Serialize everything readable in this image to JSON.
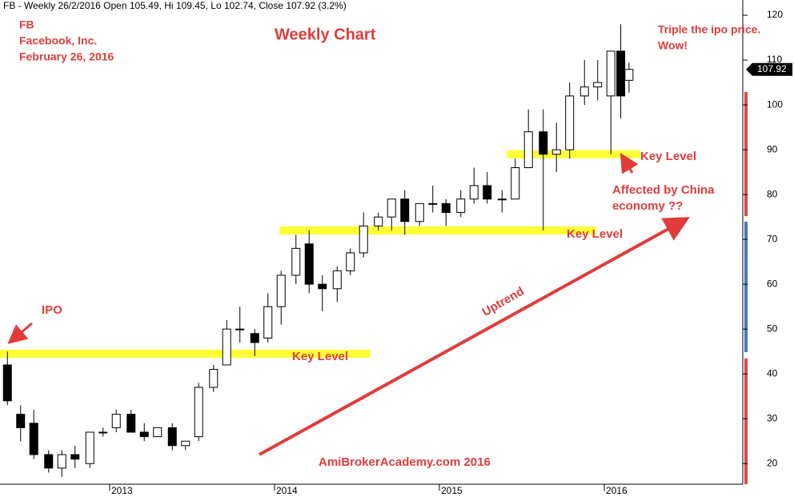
{
  "chart_data": {
    "type": "candlestick",
    "header": "FB - Weekly 26/2/2016 Open 105.49, Hi 109.45, Lo 102.74, Close 107.92 (3.2%)",
    "title": "Weekly Chart",
    "annotations": [
      "FB",
      "Facebook, Inc.",
      "February 26, 2016",
      "Triple the ipo price.",
      "Wow!",
      "IPO",
      "Affected by China",
      "economy ??",
      "Uptrend",
      "AmiBrokerAcademy.com  2016"
    ],
    "x": [
      2012.38,
      2012.46,
      2012.54,
      2012.63,
      2012.71,
      2012.79,
      2012.88,
      2012.96,
      2013.04,
      2013.13,
      2013.21,
      2013.29,
      2013.38,
      2013.46,
      2013.54,
      2013.63,
      2013.71,
      2013.79,
      2013.88,
      2013.96,
      2014.04,
      2014.13,
      2014.21,
      2014.29,
      2014.38,
      2014.46,
      2014.54,
      2014.63,
      2014.71,
      2014.79,
      2014.88,
      2014.96,
      2015.04,
      2015.13,
      2015.21,
      2015.29,
      2015.38,
      2015.46,
      2015.54,
      2015.63,
      2015.71,
      2015.79,
      2015.88,
      2015.96,
      2016.04,
      2016.1,
      2016.15
    ],
    "open": [
      42,
      31,
      29,
      22,
      19,
      22,
      20,
      27,
      28,
      31,
      27,
      26,
      28,
      24,
      26,
      37,
      42,
      50,
      49,
      48,
      55,
      62,
      69,
      60,
      59,
      63,
      67,
      73,
      75,
      79,
      74,
      78,
      78,
      76,
      79,
      82,
      79,
      79,
      86,
      94,
      89,
      90,
      102,
      104,
      102,
      112,
      105.49
    ],
    "high": [
      45,
      33,
      32,
      23,
      23,
      24,
      27,
      28,
      32,
      32,
      29,
      28,
      29,
      25,
      38,
      42,
      52,
      55,
      50,
      58,
      63,
      71,
      72,
      62,
      64,
      68,
      76,
      76,
      79,
      81,
      78,
      82,
      79,
      81,
      86,
      85,
      81,
      88,
      99,
      99,
      96,
      105,
      110,
      110,
      112,
      118,
      109.45
    ],
    "low": [
      33,
      25,
      21,
      18,
      17,
      19,
      19,
      26,
      27,
      27,
      25,
      26,
      23,
      23,
      25,
      36,
      42,
      47,
      44,
      47,
      51,
      60,
      58,
      54,
      56,
      62,
      66,
      72,
      72,
      71,
      73,
      76,
      73,
      75,
      78,
      78,
      76,
      79,
      86,
      72,
      85,
      88,
      100,
      101,
      89,
      97,
      102.74
    ],
    "close": [
      34,
      28,
      22,
      19,
      22,
      21,
      27,
      27,
      31,
      27,
      26,
      28,
      24,
      25,
      37,
      41,
      50,
      50,
      47,
      55,
      62,
      68,
      60,
      59,
      63,
      67,
      73,
      75,
      79,
      74,
      78,
      78,
      76,
      79,
      82,
      79,
      79,
      86,
      94,
      89,
      90,
      102,
      104,
      105,
      112,
      102,
      107.92
    ],
    "key_levels": [
      {
        "value": 44.5,
        "from": 2012.335,
        "to": 2014.58,
        "label": "Key Level"
      },
      {
        "value": 72,
        "from": 2014.03,
        "to": 2015.95,
        "label": "Key Level"
      },
      {
        "value": 89,
        "from": 2015.41,
        "to": 2016.22,
        "label": "Key Level"
      }
    ],
    "xlim": [
      2012.335,
      2016.84
    ],
    "xticks": [
      2013,
      2014,
      2015,
      2016
    ],
    "ylim": [
      15.4,
      123.4
    ],
    "yticks": [
      20,
      30,
      40,
      50,
      60,
      70,
      80,
      90,
      100,
      110,
      120
    ]
  }
}
